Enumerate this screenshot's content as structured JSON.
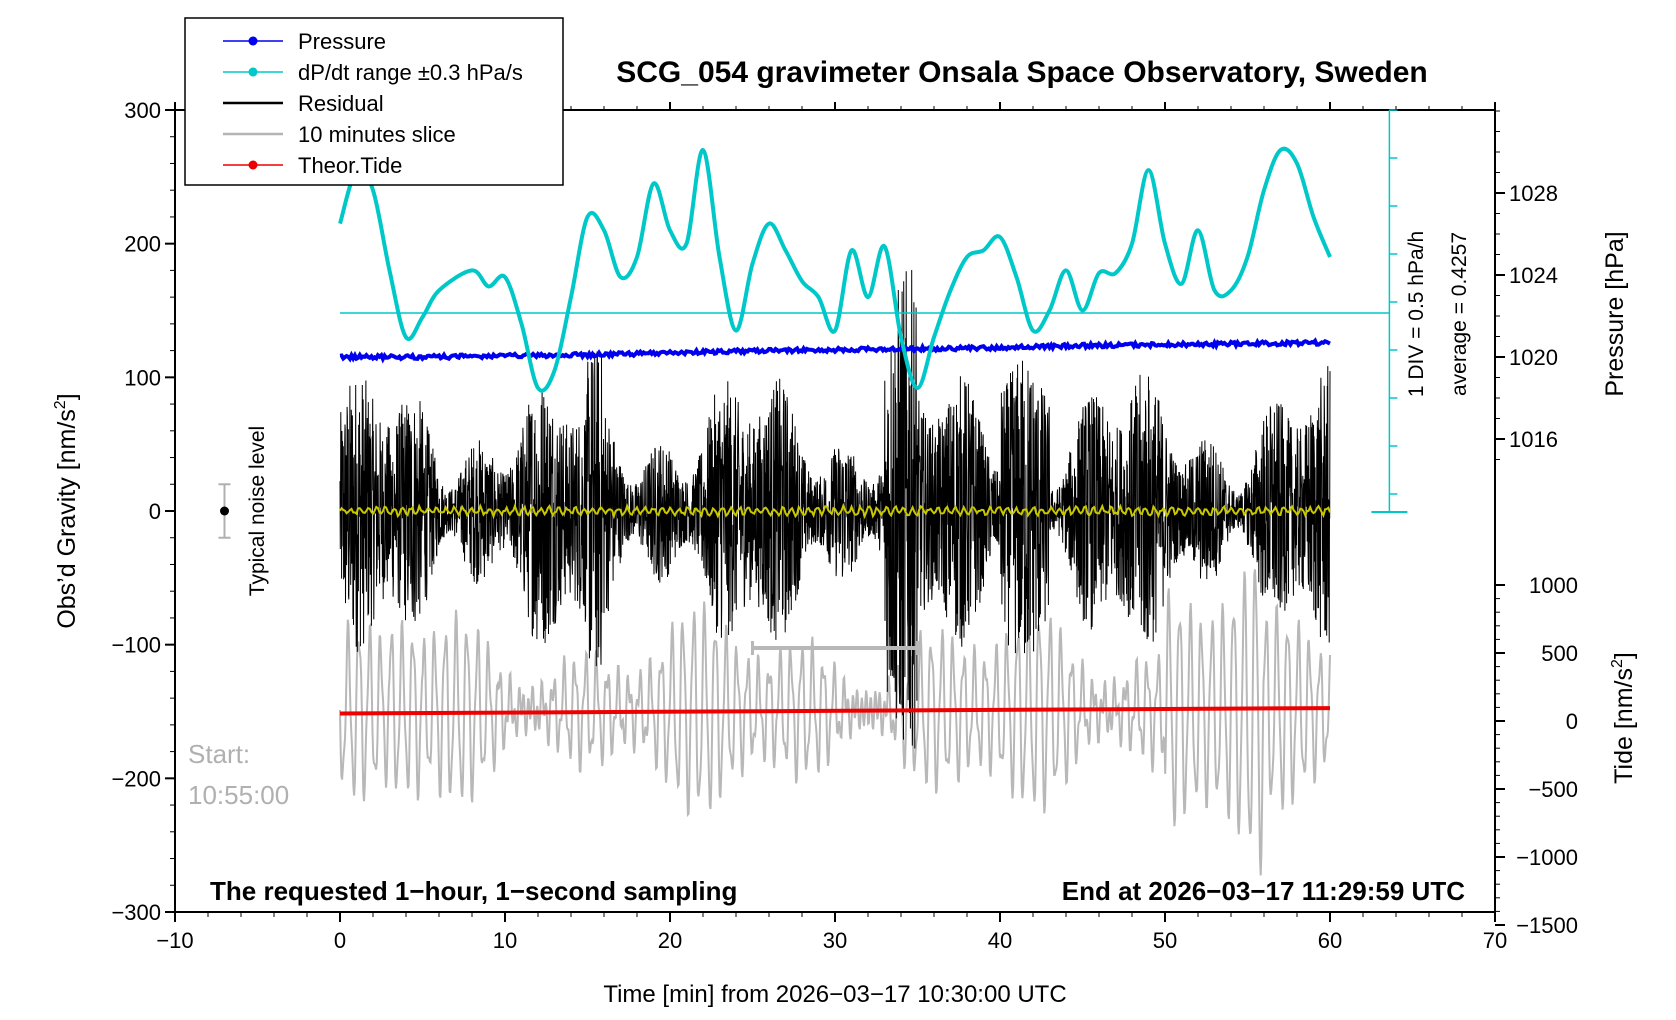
{
  "chart_data": {
    "type": "line",
    "title": "SCG_054 gravimeter Onsala Space Observatory, Sweden",
    "xlabel": "Time [min] from 2026−03−17 10:30:00 UTC",
    "xlim": [
      -10,
      70
    ],
    "x_ticks": [
      -10,
      0,
      10,
      20,
      30,
      40,
      50,
      60,
      70
    ],
    "x_tick_labels": [
      "−10",
      "0",
      "10",
      "20",
      "30",
      "40",
      "50",
      "60",
      "70"
    ],
    "left_axis": {
      "label": "Obs’d Gravity [nm/s²]",
      "label_main": "Obs’d Gravity [nm/s",
      "label_sup": "2",
      "label_end": "]",
      "ylim": [
        -300,
        300
      ],
      "ticks": [
        300,
        200,
        100,
        0,
        -100,
        -200,
        -300
      ],
      "tick_labels": [
        "300",
        "200",
        "100",
        "0",
        "−100",
        "−200",
        "−300"
      ]
    },
    "right_pressure_axis": {
      "label": "Pressure [hPa]",
      "ticks": [
        1028,
        1024,
        1020,
        1016
      ],
      "tick_labels": [
        "1028",
        "1024",
        "1020",
        "1016"
      ]
    },
    "right_tide_axis": {
      "label": "Tide [nm/s²]",
      "label_main": "Tide [nm/s",
      "label_sup": "2",
      "label_end": "]",
      "ticks": [
        1000,
        500,
        0,
        -500,
        -1000,
        -1500
      ],
      "tick_labels": [
        "1000",
        "500",
        "0",
        "−500",
        "−1000",
        "−1500"
      ]
    },
    "dpdt_scale": {
      "div_label": "1 DIV = 0.5 hPa/h",
      "average_label": "average = 0.4257"
    },
    "legend": {
      "placement": "top-left",
      "entries": [
        {
          "label": "Pressure",
          "color": "#0000ee",
          "marker": true
        },
        {
          "label": "dP/dt range ±0.3 hPa/s",
          "color": "#00c8c8",
          "marker": true
        },
        {
          "label": "Residual",
          "color": "#000000",
          "marker": false
        },
        {
          "label": "10 minutes slice",
          "color": "#b4b4b4",
          "marker": false
        },
        {
          "label": "Theor.Tide",
          "color": "#ee0000",
          "marker": true
        }
      ]
    },
    "annotations": {
      "noise_label": "Typical noise level",
      "start_label": "Start:",
      "start_time": "10:55:00",
      "bottom_left": "The requested 1−hour, 1−second sampling",
      "bottom_right": "End at 2026−03−17 11:29:59 UTC"
    },
    "series": [
      {
        "name": "Pressure",
        "axis": "pressure",
        "color": "#0000ee",
        "x": [
          0,
          5,
          10,
          15,
          20,
          25,
          30,
          35,
          40,
          45,
          50,
          55,
          60
        ],
        "y": [
          1020.0,
          1020.0,
          1020.05,
          1020.1,
          1020.2,
          1020.3,
          1020.35,
          1020.4,
          1020.45,
          1020.55,
          1020.6,
          1020.65,
          1020.7
        ]
      },
      {
        "name": "dP/dt range ±0.3 hPa/s",
        "axis": "gravity_px",
        "color": "#00c8c8",
        "x": [
          0,
          1,
          2,
          3,
          4,
          5,
          6,
          8,
          9,
          10,
          11,
          12,
          13,
          14,
          15,
          16,
          17,
          18,
          19,
          20,
          21,
          22,
          23,
          24,
          25,
          26,
          27,
          28,
          29,
          30,
          31,
          32,
          33,
          34,
          35,
          36,
          37,
          38,
          39,
          40,
          41,
          42,
          43,
          44,
          45,
          46,
          47,
          48,
          49,
          50,
          51,
          52,
          53,
          54,
          55,
          56,
          57,
          58,
          59,
          60
        ],
        "y": [
          215,
          255,
          240,
          180,
          130,
          145,
          165,
          180,
          168,
          175,
          140,
          92,
          105,
          160,
          220,
          210,
          175,
          190,
          245,
          210,
          200,
          270,
          190,
          135,
          185,
          215,
          195,
          172,
          160,
          135,
          195,
          160,
          198,
          130,
          92,
          130,
          165,
          190,
          195,
          205,
          175,
          135,
          150,
          180,
          150,
          178,
          178,
          200,
          255,
          200,
          170,
          210,
          165,
          165,
          190,
          240,
          270,
          260,
          220,
          190
        ]
      },
      {
        "name": "Theor.Tide",
        "axis": "tide",
        "color": "#ee0000",
        "x": [
          0,
          60
        ],
        "y": [
          55,
          95
        ]
      }
    ]
  }
}
